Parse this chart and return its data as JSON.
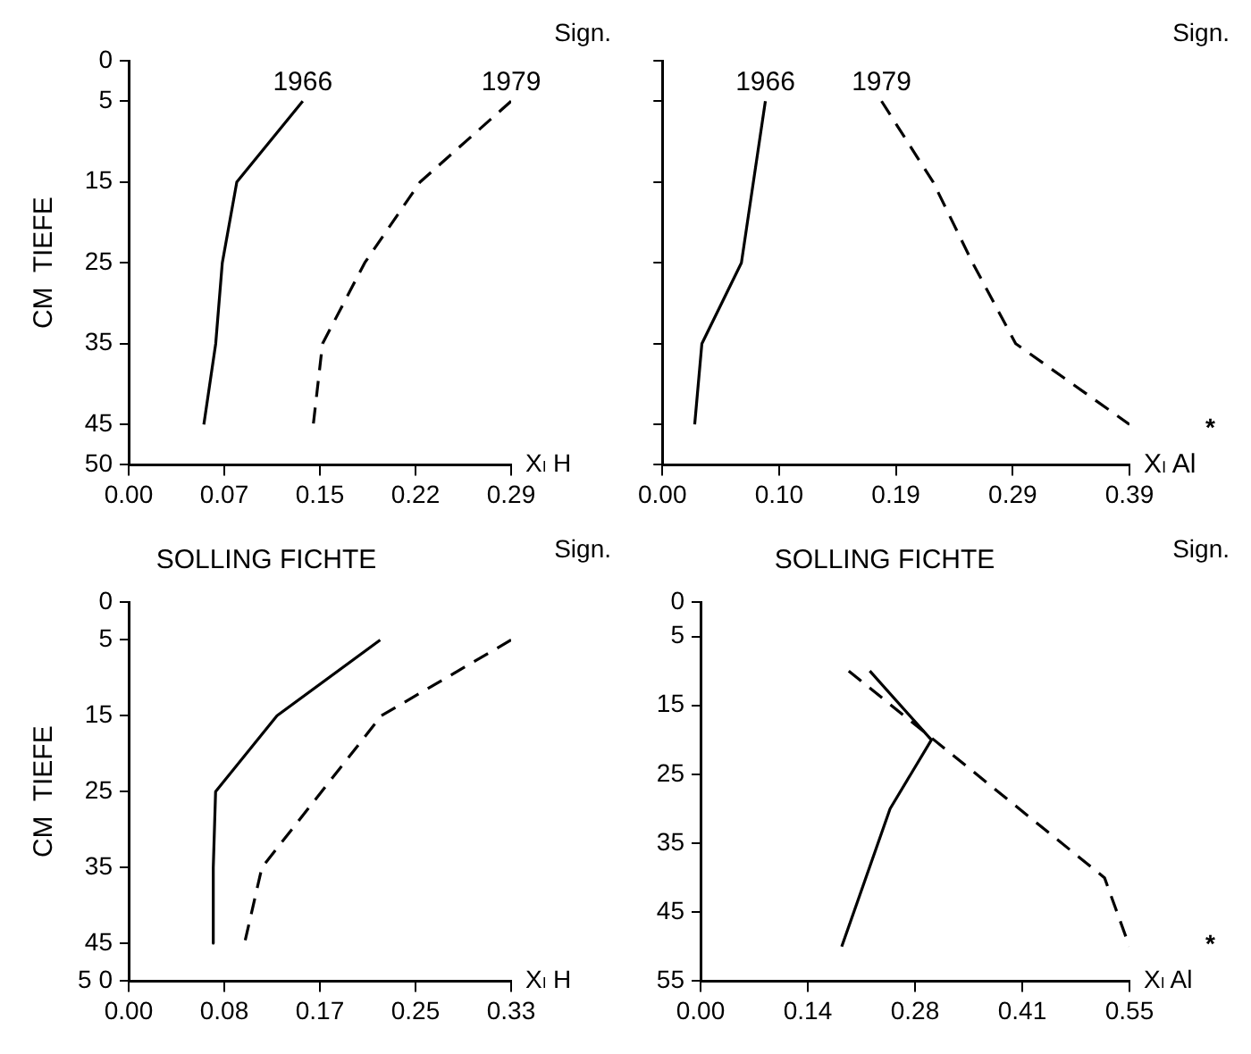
{
  "chart_data": [
    {
      "type": "line",
      "ylabel": "CM  TIEFE",
      "xlabel": "Xₗ H",
      "annotations": [
        "Sign."
      ],
      "xlim": [
        0,
        0.29
      ],
      "xticks": [
        {
          "value": 0,
          "label": "0.00"
        },
        {
          "value": 0.0725,
          "label": "0.07"
        },
        {
          "value": 0.145,
          "label": "0.15"
        },
        {
          "value": 0.2175,
          "label": "0.22"
        },
        {
          "value": 0.29,
          "label": "0.29"
        }
      ],
      "ylim": [
        50,
        0
      ],
      "yticks": [
        0,
        5,
        15,
        25,
        35,
        45,
        50
      ],
      "grid": false,
      "legend": false,
      "marker": "none",
      "series": [
        {
          "name": "1966",
          "color": "#000000",
          "line_style": "solid",
          "x": [
            0.132,
            0.082,
            0.071,
            0.066,
            0.057
          ],
          "values": [
            5,
            15,
            25,
            35,
            45
          ]
        },
        {
          "name": "1979",
          "color": "#000000",
          "line_style": "dashed",
          "x": [
            0.29,
            0.221,
            0.179,
            0.147,
            0.14
          ],
          "values": [
            5,
            15,
            25,
            35,
            45
          ]
        }
      ]
    },
    {
      "type": "line",
      "xlabel": "Xₗ Al",
      "annotations": [
        "Sign.",
        "*"
      ],
      "xlim": [
        0,
        0.39
      ],
      "xticks": [
        {
          "value": 0,
          "label": "0.00"
        },
        {
          "value": 0.0975,
          "label": "0.10"
        },
        {
          "value": 0.195,
          "label": "0.19"
        },
        {
          "value": 0.2925,
          "label": "0.29"
        },
        {
          "value": 0.39,
          "label": "0.39"
        }
      ],
      "ylim": [
        50,
        0
      ],
      "yticks": [
        0,
        5,
        15,
        25,
        35,
        45,
        50
      ],
      "tick_labels": "x",
      "grid": false,
      "legend": false,
      "marker": "none",
      "series": [
        {
          "name": "1966",
          "color": "#000000",
          "line_style": "solid",
          "x": [
            0.086,
            0.066,
            0.033,
            0.027
          ],
          "values": [
            5,
            25,
            35,
            45
          ]
        },
        {
          "name": "1979",
          "color": "#000000",
          "line_style": "dashed",
          "x": [
            0.183,
            0.226,
            0.259,
            0.295,
            0.39
          ],
          "values": [
            5,
            15,
            25,
            35,
            45
          ]
        }
      ]
    },
    {
      "type": "line",
      "title": "SOLLING FICHTE",
      "ylabel": "CM  TIEFE",
      "xlabel": "Xₗ H",
      "annotations": [
        "Sign."
      ],
      "xlim": [
        0,
        0.33
      ],
      "xticks": [
        {
          "value": 0,
          "label": "0.00"
        },
        {
          "value": 0.0825,
          "label": "0.08"
        },
        {
          "value": 0.165,
          "label": "0.17"
        },
        {
          "value": 0.2475,
          "label": "0.25"
        },
        {
          "value": 0.33,
          "label": "0.33"
        }
      ],
      "ylim": [
        50,
        0
      ],
      "yticks": [
        0,
        5,
        15,
        25,
        35,
        45,
        {
          "value": 50,
          "label": "5 0"
        }
      ],
      "grid": false,
      "legend": false,
      "marker": "none",
      "series": [
        {
          "color": "#000000",
          "line_style": "solid",
          "x": [
            0.217,
            0.128,
            0.075,
            0.073,
            0.073
          ],
          "values": [
            5,
            15,
            25,
            35,
            45
          ]
        },
        {
          "color": "#000000",
          "line_style": "dashed",
          "x": [
            0.33,
            0.218,
            0.115,
            0.1
          ],
          "values": [
            5,
            15,
            35,
            45
          ]
        }
      ]
    },
    {
      "type": "line",
      "title": "SOLLING FICHTE",
      "xlabel": "Xₗ Al",
      "annotations": [
        "Sign.",
        "*"
      ],
      "xlim": [
        0,
        0.55
      ],
      "xticks": [
        {
          "value": 0,
          "label": "0.00"
        },
        {
          "value": 0.1375,
          "label": "0.14"
        },
        {
          "value": 0.275,
          "label": "0.28"
        },
        {
          "value": 0.4125,
          "label": "0.41"
        },
        {
          "value": 0.55,
          "label": "0.55"
        }
      ],
      "ylim": [
        55,
        0
      ],
      "yticks": [
        0,
        5,
        15,
        25,
        35,
        45,
        55
      ],
      "grid": false,
      "legend": false,
      "marker": "none",
      "series": [
        {
          "color": "#000000",
          "line_style": "solid",
          "x": [
            0.217,
            0.296,
            0.243,
            0.181
          ],
          "values": [
            10,
            20,
            30,
            50
          ]
        },
        {
          "color": "#000000",
          "line_style": "dashed",
          "x": [
            0.19,
            0.518,
            0.55
          ],
          "values": [
            10,
            40,
            50
          ]
        }
      ]
    }
  ]
}
